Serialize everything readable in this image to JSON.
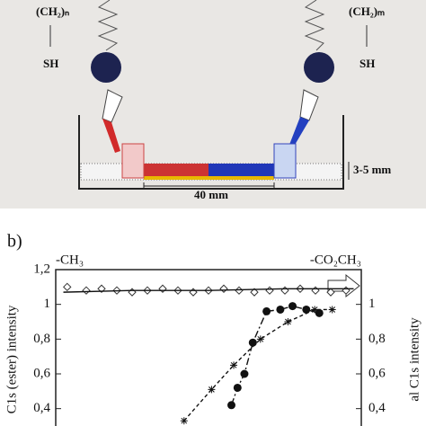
{
  "diagram": {
    "left_chain": "(CH₂)ₙ",
    "left_thiol": "SH",
    "right_chain": "(CH₂)ₘ",
    "right_thiol": "SH",
    "thickness": "3-5 mm",
    "length": "40 mm"
  },
  "panel_label": "b)",
  "chart_data": {
    "type": "line",
    "left_end_label": "-CH₃",
    "right_end_label": "-CO₂CH₃",
    "ylabel": "C1s (ester) intensity",
    "y2label": "al C1s intensity",
    "xlim": [
      0,
      40
    ],
    "ylim": [
      0.3,
      1.2
    ],
    "yticks": [
      {
        "value": 0.4,
        "label": "0,4"
      },
      {
        "value": 0.6,
        "label": "0,6"
      },
      {
        "value": 0.8,
        "label": "0,8"
      },
      1,
      {
        "value": 1.2,
        "label": "1,2"
      }
    ],
    "y2lim": [
      0.3,
      1.2
    ],
    "y2ticks": [
      {
        "value": 0.4,
        "label": "0,4"
      },
      {
        "value": 0.6,
        "label": "0,6"
      },
      {
        "value": 0.8,
        "label": "0,8"
      },
      1
    ],
    "series": [
      {
        "marker": "diamond",
        "line": "none",
        "color": "#333333",
        "x": [
          1.5,
          4,
          6,
          8,
          10,
          12,
          14,
          16,
          18,
          20,
          22,
          24,
          26,
          28,
          30,
          32,
          34,
          36,
          38
        ],
        "values": [
          1.1,
          1.08,
          1.09,
          1.08,
          1.07,
          1.08,
          1.09,
          1.08,
          1.07,
          1.08,
          1.09,
          1.08,
          1.07,
          1.08,
          1.08,
          1.09,
          1.08,
          1.07,
          1.08
        ]
      },
      {
        "marker": "none",
        "line": "solid",
        "color": "#111111",
        "x": [
          1,
          10,
          20,
          30,
          39
        ],
        "values": [
          1.07,
          1.08,
          1.08,
          1.09,
          1.09
        ]
      },
      {
        "marker": "circle",
        "line": "dashdot",
        "color": "#111111",
        "x": [
          23,
          23.8,
          24.7,
          25.8,
          27.6,
          29.4,
          31,
          32.8,
          34.5
        ],
        "values": [
          0.42,
          0.52,
          0.6,
          0.78,
          0.96,
          0.97,
          0.99,
          0.97,
          0.95
        ]
      },
      {
        "marker": "star",
        "line": "dashed",
        "color": "#111111",
        "x": [
          16.8,
          20.4,
          23.3,
          26.8,
          30.4,
          33.9,
          36.2
        ],
        "values": [
          0.33,
          0.51,
          0.65,
          0.8,
          0.9,
          0.97,
          0.97
        ],
        "axis": "y2"
      }
    ]
  }
}
